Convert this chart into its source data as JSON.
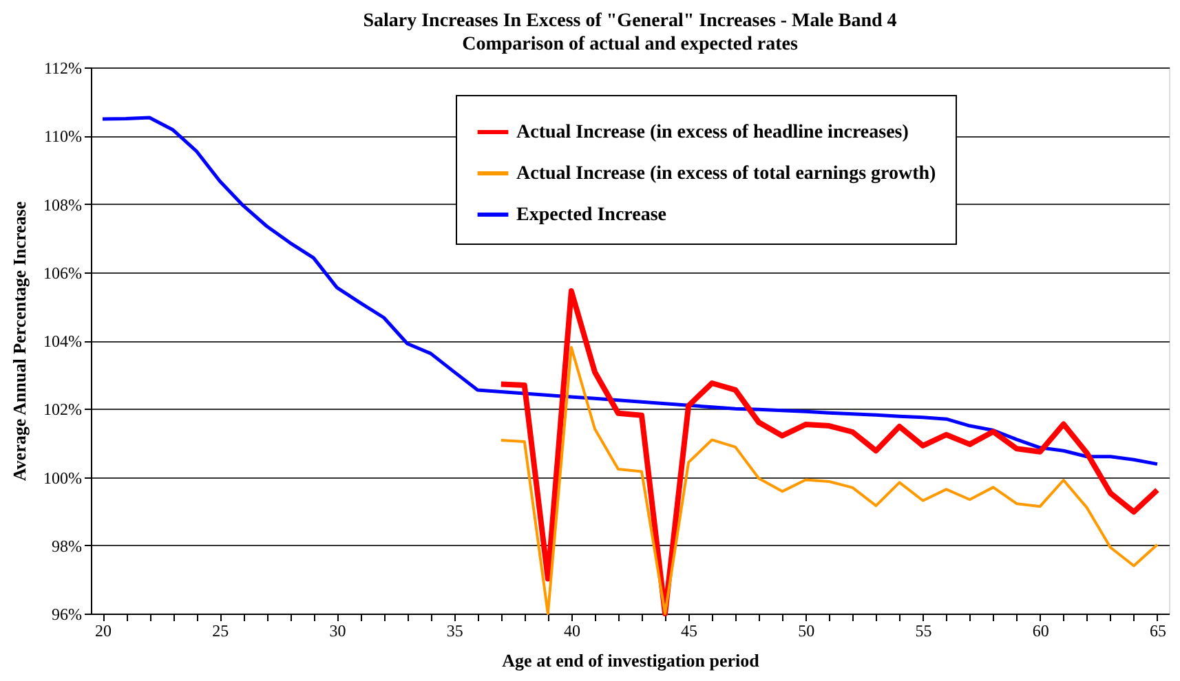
{
  "chart_data": {
    "type": "line",
    "title": "Salary Increases In Excess of \"General\" Increases - Male Band 4",
    "subtitle": "Comparison of actual and expected rates",
    "xlabel": "Age at end of investigation period",
    "ylabel": "Average Annual Percentage Increase",
    "x": [
      20,
      21,
      22,
      23,
      24,
      25,
      26,
      27,
      28,
      29,
      30,
      31,
      32,
      33,
      34,
      35,
      36,
      37,
      38,
      39,
      40,
      41,
      42,
      43,
      44,
      45,
      46,
      47,
      48,
      49,
      50,
      51,
      52,
      53,
      54,
      55,
      56,
      57,
      58,
      59,
      60,
      61,
      62,
      63,
      64,
      65
    ],
    "series": [
      {
        "name": "Actual Increase (in excess of headline increases)",
        "color": "#ff0000",
        "x": [
          37,
          38,
          39,
          40,
          41,
          42,
          43,
          44,
          45,
          46,
          47,
          48,
          49,
          50,
          51,
          52,
          53,
          54,
          55,
          56,
          57,
          58,
          59,
          60,
          61,
          62,
          63,
          64,
          65
        ],
        "values": [
          102.72,
          102.69,
          97.02,
          105.45,
          103.08,
          101.87,
          101.81,
          96,
          102.09,
          102.75,
          102.55,
          101.6,
          101.21,
          101.54,
          101.5,
          101.32,
          100.77,
          101.48,
          100.92,
          101.24,
          100.96,
          101.33,
          100.83,
          100.74,
          101.55,
          100.7,
          99.53,
          98.98,
          99.62
        ]
      },
      {
        "name": "Actual Increase (in excess of total earnings growth)",
        "color": "#ff9900",
        "x": [
          37,
          38,
          39,
          40,
          41,
          42,
          43,
          44,
          45,
          46,
          47,
          48,
          49,
          50,
          51,
          52,
          53,
          54,
          55,
          56,
          57,
          58,
          59,
          60,
          61,
          62,
          63,
          64,
          65
        ],
        "values": [
          101.08,
          101.04,
          96,
          103.8,
          101.41,
          100.23,
          100.16,
          96,
          100.43,
          101.09,
          100.88,
          99.96,
          99.58,
          99.92,
          99.87,
          99.69,
          99.16,
          99.84,
          99.31,
          99.64,
          99.34,
          99.7,
          99.22,
          99.14,
          99.91,
          99.1,
          97.94,
          97.4,
          98.02
        ]
      },
      {
        "name": "Expected Increase",
        "color": "#0000ff",
        "values": [
          110.49,
          110.5,
          110.53,
          110.17,
          109.55,
          108.67,
          107.95,
          107.35,
          106.86,
          106.42,
          105.55,
          105.1,
          104.67,
          103.91,
          103.62,
          103.08,
          102.55,
          102.5,
          102.45,
          102.4,
          102.35,
          102.3,
          102.25,
          102.2,
          102.15,
          102.1,
          102.05,
          102.0,
          101.98,
          101.95,
          101.92,
          101.88,
          101.85,
          101.82,
          101.78,
          101.75,
          101.7,
          101.5,
          101.37,
          101.1,
          100.86,
          100.77,
          100.6,
          100.6,
          100.51,
          100.38
        ]
      }
    ],
    "xlim": [
      19.5,
      65.5
    ],
    "xticks": [
      20,
      {
        "value": 21,
        "label": null
      },
      {
        "value": 22,
        "label": null
      },
      {
        "value": 23,
        "label": null
      },
      {
        "value": 24,
        "label": null
      },
      25,
      {
        "value": 26,
        "label": null
      },
      {
        "value": 27,
        "label": null
      },
      {
        "value": 28,
        "label": null
      },
      {
        "value": 29,
        "label": null
      },
      30,
      {
        "value": 31,
        "label": null
      },
      {
        "value": 32,
        "label": null
      },
      {
        "value": 33,
        "label": null
      },
      {
        "value": 34,
        "label": null
      },
      35,
      {
        "value": 36,
        "label": null
      },
      {
        "value": 37,
        "label": null
      },
      {
        "value": 38,
        "label": null
      },
      {
        "value": 39,
        "label": null
      },
      40,
      {
        "value": 41,
        "label": null
      },
      {
        "value": 42,
        "label": null
      },
      {
        "value": 43,
        "label": null
      },
      {
        "value": 44,
        "label": null
      },
      45,
      {
        "value": 46,
        "label": null
      },
      {
        "value": 47,
        "label": null
      },
      {
        "value": 48,
        "label": null
      },
      {
        "value": 49,
        "label": null
      },
      50,
      {
        "value": 51,
        "label": null
      },
      {
        "value": 52,
        "label": null
      },
      {
        "value": 53,
        "label": null
      },
      {
        "value": 54,
        "label": null
      },
      55,
      {
        "value": 56,
        "label": null
      },
      {
        "value": 57,
        "label": null
      },
      {
        "value": 58,
        "label": null
      },
      {
        "value": 59,
        "label": null
      },
      60,
      {
        "value": 61,
        "label": null
      },
      {
        "value": 62,
        "label": null
      },
      {
        "value": 63,
        "label": null
      },
      {
        "value": 64,
        "label": null
      },
      65
    ],
    "ylim": [
      96,
      112
    ],
    "yticks": [
      {
        "value": 96,
        "label": "96%"
      },
      {
        "value": 98,
        "label": "98%"
      },
      {
        "value": 100,
        "label": "100%"
      },
      {
        "value": 102,
        "label": "102%"
      },
      {
        "value": 104,
        "label": "104%"
      },
      {
        "value": 106,
        "label": "106%"
      },
      {
        "value": 108,
        "label": "108%"
      },
      {
        "value": 110,
        "label": "110%"
      },
      {
        "value": 112,
        "label": "112%"
      }
    ],
    "grid": "y",
    "legend": "top right",
    "marker": "none",
    "line_style": "solid"
  }
}
